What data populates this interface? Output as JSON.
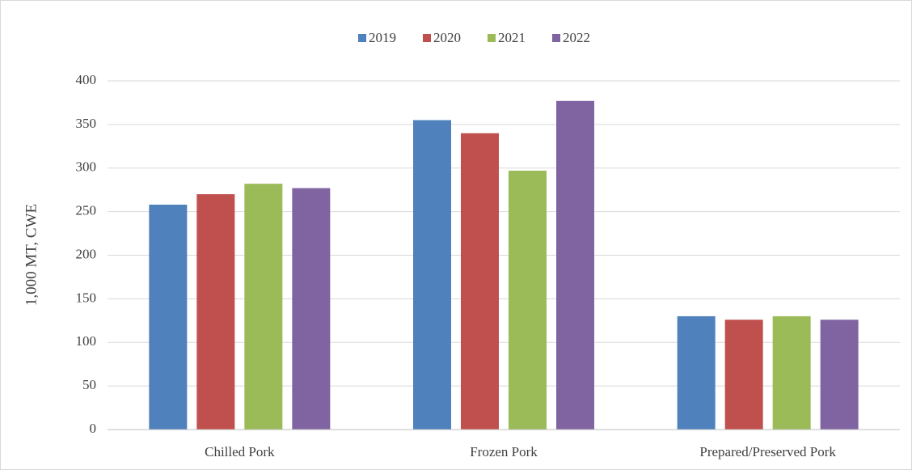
{
  "chart_data": {
    "type": "bar",
    "y_label": "1,000 MT, CWE",
    "categories": [
      "Chilled Pork",
      "Frozen Pork",
      "Prepared/Preserved Pork"
    ],
    "series": [
      {
        "name": "2019",
        "color": "#4f81bd",
        "values": [
          258,
          355,
          130
        ]
      },
      {
        "name": "2020",
        "color": "#c0504d",
        "values": [
          270,
          340,
          126
        ]
      },
      {
        "name": "2021",
        "color": "#9bbb59",
        "values": [
          282,
          297,
          130
        ]
      },
      {
        "name": "2022",
        "color": "#8064a2",
        "values": [
          277,
          377,
          126
        ]
      }
    ],
    "ylim": [
      0,
      400
    ],
    "yticks": [
      0,
      50,
      100,
      150,
      200,
      250,
      300,
      350,
      400
    ],
    "grid": true,
    "legend": "top"
  }
}
